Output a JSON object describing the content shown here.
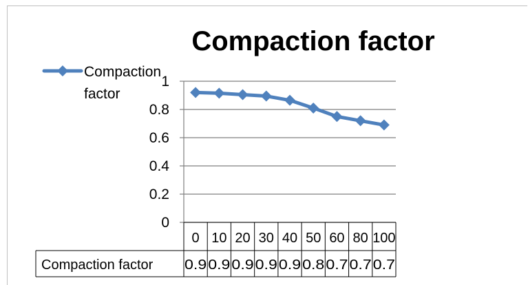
{
  "chart_data": {
    "type": "line",
    "title": "Compaction factor",
    "categories": [
      "0",
      "10",
      "20",
      "30",
      "40",
      "50",
      "60",
      "80",
      "100"
    ],
    "series": [
      {
        "name": "Compaction factor",
        "values": [
          0.92,
          0.915,
          0.905,
          0.895,
          0.865,
          0.81,
          0.75,
          0.72,
          0.69
        ],
        "color": "#4f81bd",
        "table_labels": [
          "0.9",
          "0.9",
          "0.9",
          "0.9",
          "0.9",
          "0.8",
          "0.7",
          "0.7",
          "0.7"
        ]
      }
    ],
    "y_ticks": [
      "0",
      "0.2",
      "0.4",
      "0.6",
      "0.8",
      "1"
    ],
    "ylim": [
      0,
      1
    ],
    "grid": true,
    "legend": "top-left",
    "data_table": true
  }
}
